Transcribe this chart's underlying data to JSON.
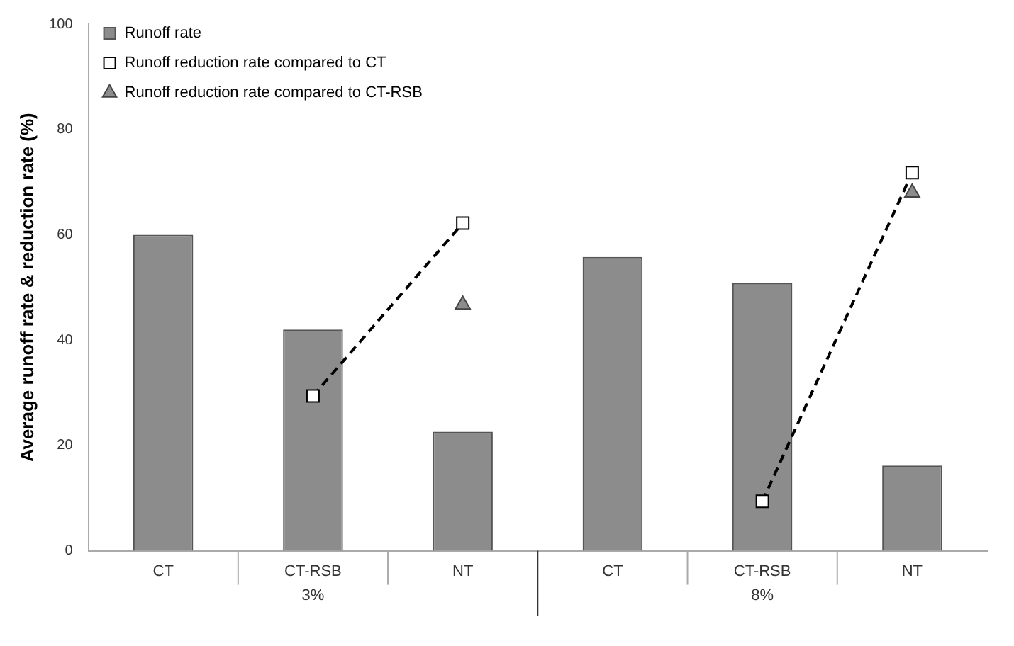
{
  "chart_data": {
    "type": "bar",
    "ylabel": "Average runoff rate & reduction rate (%)",
    "categories": [
      "CT",
      "CT-RSB",
      "NT",
      "CT",
      "CT-RSB",
      "NT"
    ],
    "annotations": [
      "3%",
      "8%"
    ],
    "series": [
      {
        "name": "Runoff rate",
        "color": "#8c8c8c",
        "values": [
          60,
          42,
          22.6,
          55.8,
          50.8,
          16.2
        ]
      },
      {
        "name": "Runoff reduction rate compared to CT",
        "type": "line",
        "color": "#000000",
        "marker": "square",
        "line_style": "dashed",
        "values": [
          null,
          29.4,
          62.2,
          null,
          9.4,
          71.8
        ]
      },
      {
        "name": "Runoff reduction rate compared to CT-RSB",
        "type": "scatter",
        "color": "#8c8c8c",
        "marker": "triangle",
        "values": [
          null,
          null,
          46.7,
          null,
          null,
          68
        ]
      }
    ],
    "ylim": [
      0,
      100
    ],
    "yticks": [
      0,
      20,
      40,
      60,
      80,
      100
    ],
    "grid": false,
    "legend": "top left"
  }
}
